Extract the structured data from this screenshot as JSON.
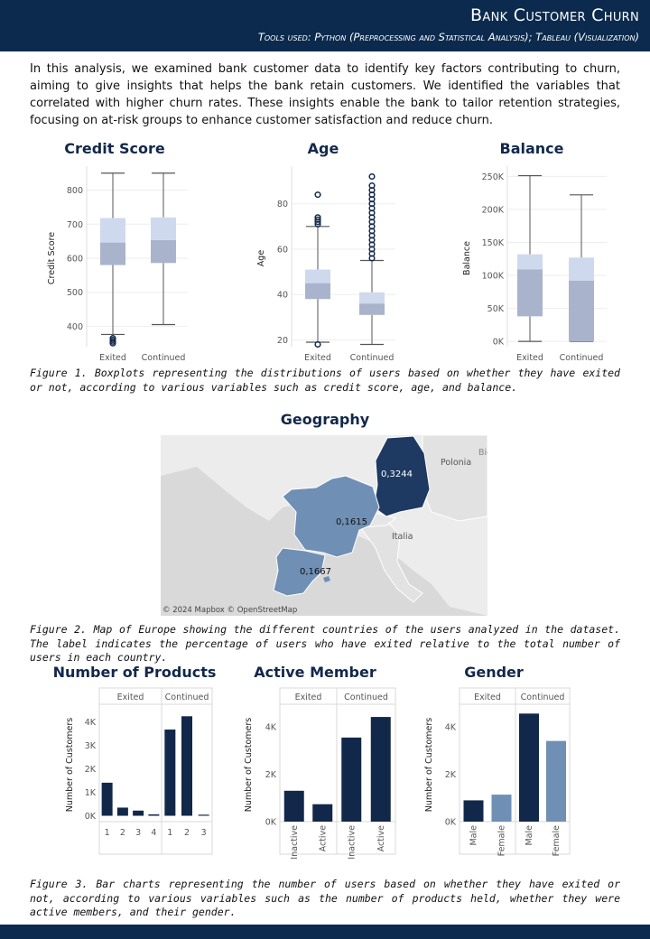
{
  "header": {
    "title": "Bank Customer Churn",
    "subtitle": "Tools used: Python (Preprocessing and Statistical Analysis); Tableau (Visualization)"
  },
  "intro": "In this analysis, we examined bank customer data to identify key factors contributing to churn, aiming to give insights that helps the bank retain customers. We identified the variables that correlated with higher churn rates. These insights enable the bank to tailor retention strategies, focusing on at-risk groups to enhance customer satisfaction and reduce churn.",
  "captions": {
    "fig1": "Figure 1. Boxplots representing the distributions of users based on whether they have exited or not, according to various variables such as credit score, age, and balance.",
    "fig2": "Figure 2. Map of Europe showing the different countries of the users analyzed in the dataset. The label indicates the percentage of users who have exited relative to the total number of users in each country.",
    "fig3": "Figure 3. Bar charts representing the number of users based on whether they have exited or not, according to various variables such as the number of products held, whether they were active members, and their gender."
  },
  "colors": {
    "dark": "#0b2a4d",
    "navy": "#12284a",
    "mid": "#6f8fb5",
    "light_box": "#cfd9ee",
    "dark_box": "#a9b4cc"
  },
  "boxplots": [
    {
      "title": "Credit Score",
      "ylabel": "Credit Score",
      "ylim": [
        340,
        860
      ],
      "ticks": [
        400,
        500,
        600,
        700,
        800
      ],
      "tick_labels": [
        "400",
        "500",
        "600",
        "700",
        "800"
      ],
      "categories": [
        "Exited",
        "Continued"
      ],
      "boxes": [
        {
          "min": 376,
          "q1": 580,
          "median": 646,
          "q3": 718,
          "max": 850,
          "outliers": [
            350,
            355,
            360,
            365
          ]
        },
        {
          "min": 405,
          "q1": 586,
          "median": 653,
          "q3": 720,
          "max": 850,
          "outliers": []
        }
      ]
    },
    {
      "title": "Age",
      "ylabel": "Age",
      "ylim": [
        17,
        95
      ],
      "ticks": [
        20,
        40,
        60,
        80
      ],
      "tick_labels": [
        "20",
        "40",
        "60",
        "80"
      ],
      "categories": [
        "Exited",
        "Continued"
      ],
      "boxes": [
        {
          "min": 19,
          "q1": 38,
          "median": 45,
          "q3": 51,
          "max": 70,
          "outliers": [
            18,
            71,
            72,
            73,
            74,
            84
          ]
        },
        {
          "min": 18,
          "q1": 31,
          "median": 36,
          "q3": 41,
          "max": 55,
          "outliers": [
            56,
            58,
            60,
            62,
            64,
            66,
            68,
            70,
            72,
            74,
            76,
            78,
            80,
            82,
            84,
            86,
            88,
            92
          ]
        }
      ]
    },
    {
      "title": "Balance",
      "ylabel": "Balance",
      "ylim": [
        -8000,
        260000
      ],
      "ticks": [
        0,
        50000,
        100000,
        150000,
        200000,
        250000
      ],
      "tick_labels": [
        "0K",
        "50K",
        "100K",
        "150K",
        "200K",
        "250K"
      ],
      "categories": [
        "Exited",
        "Continued"
      ],
      "boxes": [
        {
          "min": 0,
          "q1": 38000,
          "median": 109000,
          "q3": 132000,
          "max": 251000,
          "outliers": []
        },
        {
          "min": 0,
          "q1": 0,
          "median": 92000,
          "q3": 127000,
          "max": 222000,
          "outliers": []
        }
      ]
    }
  ],
  "map": {
    "title": "Geography",
    "regions": [
      {
        "name": "Germany",
        "value": "0,3244"
      },
      {
        "name": "France",
        "value": "0,1615"
      },
      {
        "name": "Spain",
        "value": "0,1667"
      }
    ],
    "labels": {
      "poland": "Polonia",
      "italy": "Italia",
      "belarus": "Bie"
    },
    "credit": "© 2024 Mapbox © OpenStreetMap"
  },
  "chart_data": [
    {
      "type": "bar",
      "title": "Number of Products",
      "ylabel": "Number of Customers",
      "ylim": [
        -250,
        4600
      ],
      "yticks": [
        0,
        1000,
        2000,
        3000,
        4000
      ],
      "ytick_labels": [
        "0K",
        "1K",
        "2K",
        "3K",
        "4K"
      ],
      "groups": [
        {
          "name": "Exited",
          "categories": [
            "1",
            "2",
            "3",
            "4"
          ],
          "values": [
            1409,
            348,
            220,
            60
          ]
        },
        {
          "name": "Continued",
          "categories": [
            "1",
            "2",
            "3"
          ],
          "values": [
            3675,
            4242,
            46
          ]
        }
      ]
    },
    {
      "type": "bar",
      "title": "Active Member",
      "ylabel": "Number of Customers",
      "ylim": [
        0,
        4800
      ],
      "yticks": [
        0,
        2000,
        4000
      ],
      "ytick_labels": [
        "0K",
        "2K",
        "4K"
      ],
      "groups": [
        {
          "name": "Exited",
          "categories": [
            "Inactive",
            "Active"
          ],
          "values": [
            1302,
            735
          ]
        },
        {
          "name": "Continued",
          "categories": [
            "Inactive",
            "Active"
          ],
          "values": [
            3547,
            4416
          ]
        }
      ]
    },
    {
      "type": "bar",
      "title": "Gender",
      "ylabel": "Number of Customers",
      "ylim": [
        0,
        4800
      ],
      "yticks": [
        0,
        2000,
        4000
      ],
      "ytick_labels": [
        "0K",
        "2K",
        "4K"
      ],
      "groups": [
        {
          "name": "Exited",
          "categories": [
            "Male",
            "Female"
          ],
          "values": [
            898,
            1139
          ]
        },
        {
          "name": "Continued",
          "categories": [
            "Male",
            "Female"
          ],
          "values": [
            4559,
            3404
          ]
        }
      ]
    }
  ]
}
